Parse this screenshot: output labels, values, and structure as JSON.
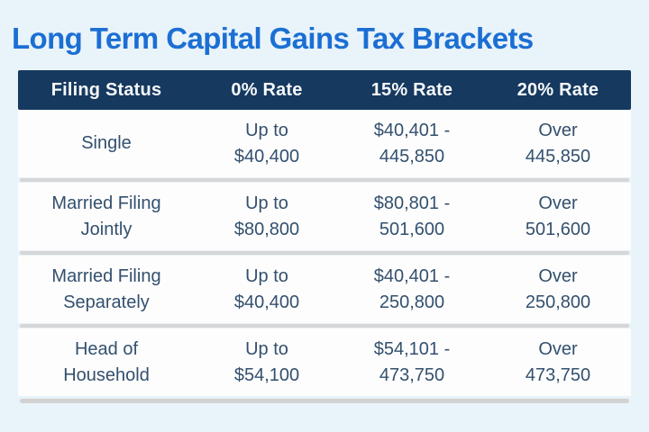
{
  "colors": {
    "page_background": "#e9f3fa",
    "title_blue": "#1b6fd3",
    "header_navy": "#16395f",
    "header_text": "#f6f8fa",
    "cell_text": "#33506e",
    "row_background": "#fdfdfd",
    "separator_gray": "#d6d6d6"
  },
  "title": {
    "text": "Long Term Capital Gains Tax Brackets"
  },
  "table": {
    "header": {
      "columns": [
        "Filing Status",
        "0% Rate",
        "15% Rate",
        "20% Rate"
      ]
    },
    "rows": [
      {
        "cells": [
          "Single",
          "Up to\n$40,400",
          "$40,401 -\n445,850",
          "Over\n445,850"
        ]
      },
      {
        "cells": [
          "Married Filing\nJointly",
          "Up to\n$80,800",
          "$80,801 -\n501,600",
          "Over\n501,600"
        ]
      },
      {
        "cells": [
          "Married Filing\nSeparately",
          "Up to\n$40,400",
          "$40,401 -\n250,800",
          "Over\n250,800"
        ]
      },
      {
        "cells": [
          "Head of\nHousehold",
          "Up to\n$54,100",
          "$54,101 -\n473,750",
          "Over\n473,750"
        ]
      }
    ]
  },
  "chart_data": {
    "type": "table",
    "title": "Long Term Capital Gains Tax Brackets",
    "columns": [
      "Filing Status",
      "0% Rate",
      "15% Rate",
      "20% Rate"
    ],
    "rows": [
      [
        "Single",
        "Up to $40,400",
        "$40,401 - 445,850",
        "Over 445,850"
      ],
      [
        "Married Filing Jointly",
        "Up to $80,800",
        "$80,801 - 501,600",
        "Over 501,600"
      ],
      [
        "Married Filing Separately",
        "Up to $40,400",
        "$40,401 - 250,800",
        "Over 250,800"
      ],
      [
        "Head of Household",
        "Up to $54,100",
        "$54,101 - 473,750",
        "Over 473,750"
      ]
    ]
  }
}
